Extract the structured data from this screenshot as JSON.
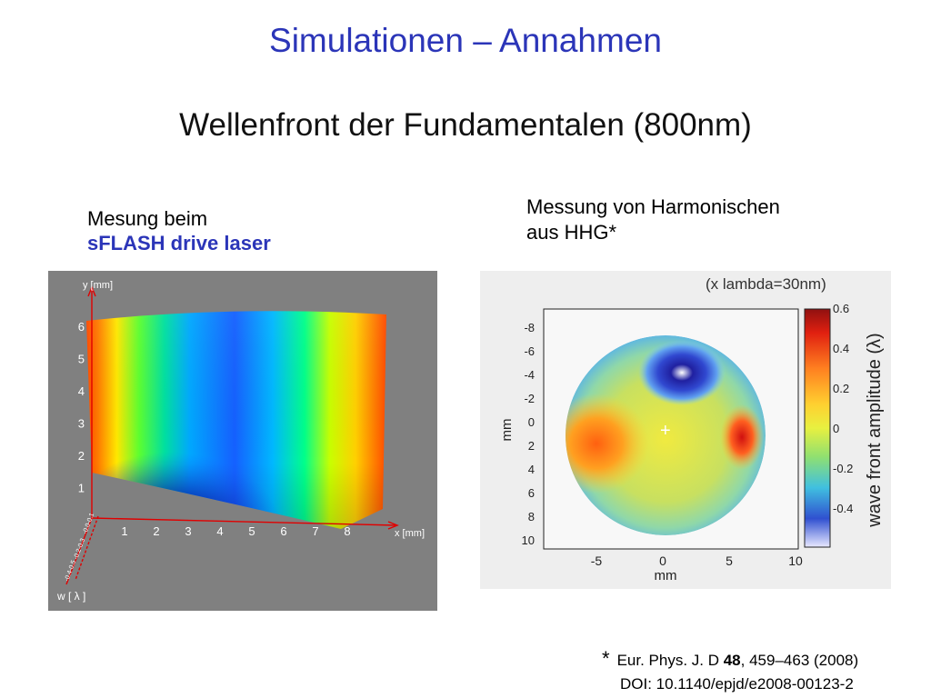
{
  "title": "Simulationen – Annahmen",
  "subtitle": "Wellenfront der Fundamentalen (800nm)",
  "left_panel": {
    "caption_line1": "Mesung beim",
    "caption_line2": "sFLASH drive laser",
    "y_axis_label": "y [mm]",
    "x_axis_label": "x [mm]",
    "w_axis_label": "w  [ λ ]",
    "y_ticks": [
      "6",
      "5",
      "4",
      "3",
      "2",
      "1"
    ],
    "x_ticks": [
      "1",
      "2",
      "3",
      "4",
      "5",
      "6",
      "7",
      "8"
    ],
    "colors": {
      "background": "#808080"
    }
  },
  "right_panel": {
    "caption_line1": "Messung von Harmonischen",
    "caption_line2": "aus HHG*",
    "note": "(x lambda=30nm)",
    "y_label": "mm",
    "x_label": "mm",
    "y_ticks": [
      "-8",
      "-6",
      "-4",
      "-2",
      "0",
      "2",
      "4",
      "6",
      "8",
      "10"
    ],
    "x_ticks": [
      "-5",
      "0",
      "5",
      "10"
    ],
    "colorbar_ticks": [
      "0.6",
      "0.4",
      "0.2",
      "0",
      "-0.2",
      "-0.4"
    ],
    "colorbar_label": "wave front amplitude (λ)"
  },
  "reference": {
    "star": "*",
    "journal": "Eur. Phys. J. D ",
    "volume": "48",
    "pages": ", 459–463 (2008)",
    "doi": "DOI: 10.1140/epjd/e2008-00123-2"
  }
}
